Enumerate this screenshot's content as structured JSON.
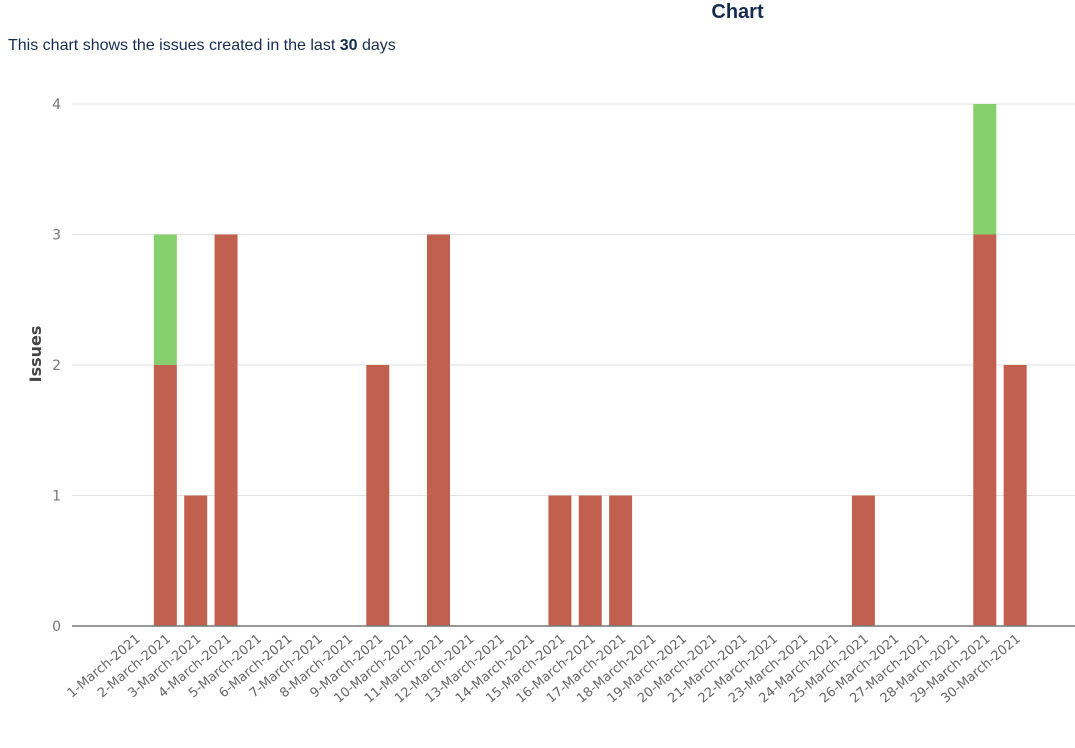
{
  "header": {
    "title": "Chart",
    "description_prefix": "This chart shows the issues created in the last ",
    "description_days": "30",
    "description_suffix": " days"
  },
  "chart_data": {
    "type": "bar",
    "stacked": true,
    "ylabel": "Issues",
    "ylim": [
      0,
      4
    ],
    "yticks": [
      "0",
      "1",
      "2",
      "3",
      "4"
    ],
    "grid": true,
    "categories": [
      "1-March-2021",
      "2-March-2021",
      "3-March-2021",
      "4-March-2021",
      "5-March-2021",
      "6-March-2021",
      "7-March-2021",
      "8-March-2021",
      "9-March-2021",
      "10-March-2021",
      "11-March-2021",
      "12-March-2021",
      "13-March-2021",
      "14-March-2021",
      "15-March-2021",
      "16-March-2021",
      "17-March-2021",
      "18-March-2021",
      "19-March-2021",
      "20-March-2021",
      "21-March-2021",
      "22-March-2021",
      "23-March-2021",
      "24-March-2021",
      "25-March-2021",
      "26-March-2021",
      "27-March-2021",
      "28-March-2021",
      "29-March-2021",
      "30-March-2021"
    ],
    "series": [
      {
        "color": "#c1604e",
        "values": [
          0,
          2,
          1,
          3,
          0,
          0,
          0,
          0,
          2,
          0,
          3,
          0,
          0,
          0,
          1,
          1,
          1,
          0,
          0,
          0,
          0,
          0,
          0,
          0,
          1,
          0,
          0,
          0,
          3,
          2
        ]
      },
      {
        "color": "#86cf6d",
        "values": [
          0,
          1,
          0,
          0,
          0,
          0,
          0,
          0,
          0,
          0,
          0,
          0,
          0,
          0,
          0,
          0,
          0,
          0,
          0,
          0,
          0,
          0,
          0,
          0,
          0,
          0,
          0,
          0,
          1,
          0
        ]
      }
    ]
  }
}
